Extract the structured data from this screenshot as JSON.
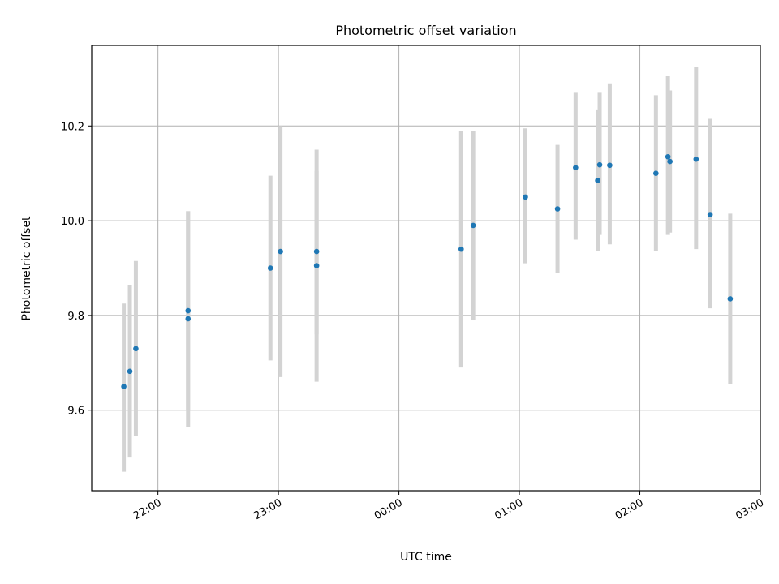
{
  "chart_data": {
    "type": "scatter",
    "title": "Photometric offset variation",
    "xlabel": "UTC time",
    "ylabel": "Photometric offset",
    "grid": true,
    "x_axis_kind": "time",
    "xlim": [
      "21:27",
      "03:00"
    ],
    "ylim": [
      9.43,
      10.37
    ],
    "x_ticks": [
      "22:00",
      "23:00",
      "00:00",
      "01:00",
      "02:00",
      "03:00"
    ],
    "y_ticks": [
      "9.6",
      "9.8",
      "10.0",
      "10.2"
    ],
    "colors": {
      "point": "#1f77b4",
      "errorbar": "#d3d3d3",
      "grid": "#b0b0b0",
      "axes": "#000000"
    },
    "points": [
      {
        "x": "21:43",
        "y": 9.65,
        "ylow": 9.47,
        "yhigh": 9.825
      },
      {
        "x": "21:46",
        "y": 9.682,
        "ylow": 9.5,
        "yhigh": 9.865
      },
      {
        "x": "21:49",
        "y": 9.73,
        "ylow": 9.545,
        "yhigh": 9.915
      },
      {
        "x": "22:15",
        "y": 9.81,
        "ylow": 9.6,
        "yhigh": 10.02
      },
      {
        "x": "22:15",
        "y": 9.793,
        "ylow": 9.565,
        "yhigh": 10.02
      },
      {
        "x": "22:56",
        "y": 9.9,
        "ylow": 9.705,
        "yhigh": 10.095
      },
      {
        "x": "23:01",
        "y": 9.935,
        "ylow": 9.67,
        "yhigh": 10.2
      },
      {
        "x": "23:19",
        "y": 9.935,
        "ylow": 9.76,
        "yhigh": 10.105
      },
      {
        "x": "23:19",
        "y": 9.905,
        "ylow": 9.66,
        "yhigh": 10.15
      },
      {
        "x": "00:31",
        "y": 9.94,
        "ylow": 9.69,
        "yhigh": 10.19
      },
      {
        "x": "00:37",
        "y": 9.99,
        "ylow": 9.79,
        "yhigh": 10.19
      },
      {
        "x": "01:03",
        "y": 10.05,
        "ylow": 9.91,
        "yhigh": 10.195
      },
      {
        "x": "01:19",
        "y": 10.025,
        "ylow": 9.89,
        "yhigh": 10.16
      },
      {
        "x": "01:28",
        "y": 10.112,
        "ylow": 9.96,
        "yhigh": 10.27
      },
      {
        "x": "01:39",
        "y": 10.085,
        "ylow": 9.935,
        "yhigh": 10.235
      },
      {
        "x": "01:40",
        "y": 10.118,
        "ylow": 9.97,
        "yhigh": 10.27
      },
      {
        "x": "01:45",
        "y": 10.117,
        "ylow": 9.95,
        "yhigh": 10.29
      },
      {
        "x": "02:08",
        "y": 10.1,
        "ylow": 9.935,
        "yhigh": 10.265
      },
      {
        "x": "02:14",
        "y": 10.135,
        "ylow": 9.97,
        "yhigh": 10.305
      },
      {
        "x": "02:15",
        "y": 10.125,
        "ylow": 9.975,
        "yhigh": 10.275
      },
      {
        "x": "02:28",
        "y": 10.13,
        "ylow": 9.94,
        "yhigh": 10.325
      },
      {
        "x": "02:35",
        "y": 10.013,
        "ylow": 9.815,
        "yhigh": 10.215
      },
      {
        "x": "02:45",
        "y": 9.835,
        "ylow": 9.655,
        "yhigh": 10.015
      }
    ]
  }
}
